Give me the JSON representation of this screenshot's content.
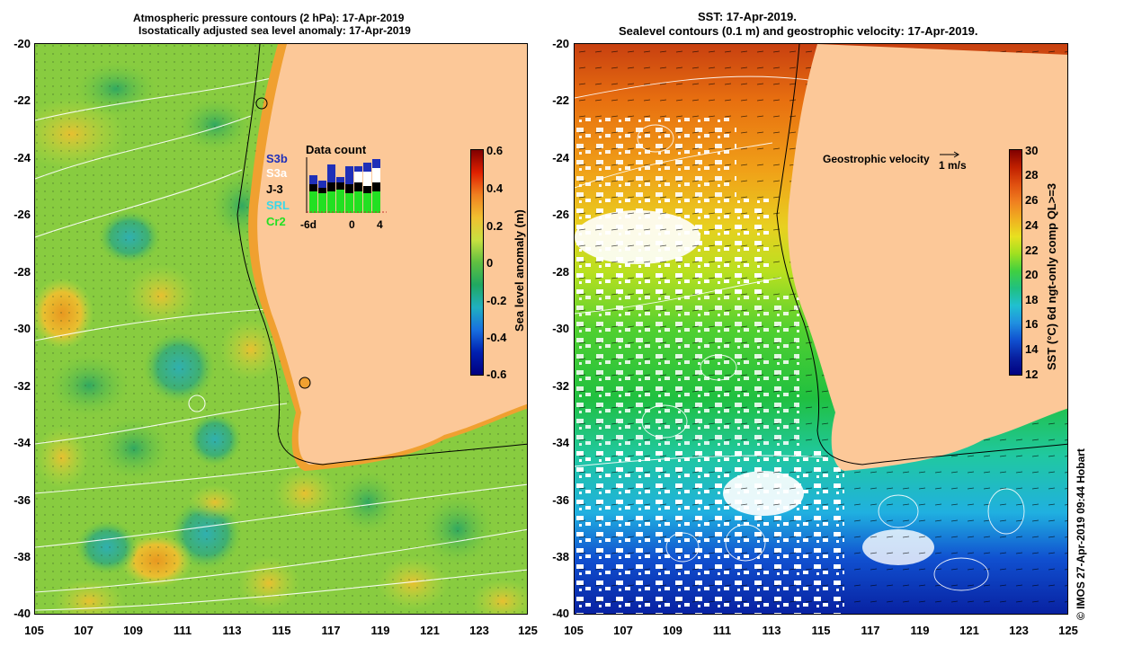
{
  "left_panel": {
    "title_line1": "Atmospheric pressure contours (2 hPa): 17-Apr-2019",
    "title_line2": "Isostatically adjusted sea level anomaly: 17-Apr-2019",
    "colorbar": {
      "label": "Sea level anomaly (m)",
      "ticks": [
        "0.6",
        "0.4",
        "0.2",
        "0",
        "-0.2",
        "-0.4",
        "-0.6"
      ]
    },
    "inset": {
      "title": "Data count",
      "satellites": [
        {
          "name": "S3b",
          "color": "#1f2fb8"
        },
        {
          "name": "S3a",
          "color": "#ffffff"
        },
        {
          "name": "J-3",
          "color": "#000000"
        },
        {
          "name": "SRL",
          "color": "#3ad8e8"
        },
        {
          "name": "Cr2",
          "color": "#22e022"
        }
      ],
      "x_ticks": [
        "-6d",
        "0",
        "4"
      ]
    }
  },
  "right_panel": {
    "title_line1": "SST: 17-Apr-2019.",
    "title_line2": "Sealevel contours (0.1 m) and geostrophic velocity: 17-Apr-2019.",
    "velocity_label": "Geostrophic velocity",
    "velocity_scale": "1 m/s",
    "colorbar": {
      "label": "SST (°C) 6d ngt-only comp QL>=3",
      "ticks": [
        "30",
        "28",
        "26",
        "24",
        "22",
        "20",
        "18",
        "16",
        "14",
        "12"
      ]
    },
    "credit": "© IMOS 27-Apr-2019 09:44 Hobart"
  },
  "axes": {
    "lat_ticks": [
      "-20",
      "-22",
      "-24",
      "-26",
      "-28",
      "-30",
      "-32",
      "-34",
      "-36",
      "-38",
      "-40"
    ],
    "lon_ticks": [
      "105",
      "107",
      "109",
      "111",
      "113",
      "115",
      "117",
      "119",
      "121",
      "123",
      "125"
    ]
  },
  "colors": {
    "land": "#fcc898",
    "sla_mid": "#8fd040",
    "sst_warm": "#e06010",
    "sst_cold": "#1030c0"
  }
}
